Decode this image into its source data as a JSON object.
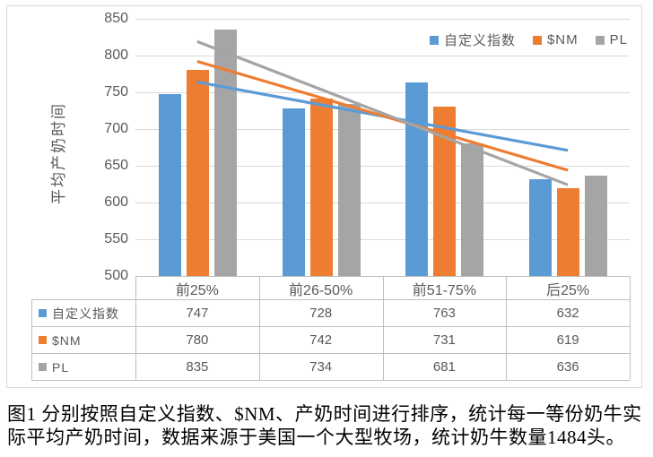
{
  "figure": {
    "caption_lines": [
      "图1 分别按照自定义指数、$NM、产奶时间进行排序，统计每一等份奶牛实",
      "际平均产奶时间，数据来源于美国一个大型牧场，统计奶牛数量1484头。"
    ]
  },
  "chart_data": {
    "type": "bar",
    "title": "",
    "xlabel": "",
    "ylabel": "平均产奶时间",
    "categories": [
      "前25%",
      "前26-50%",
      "前51-75%",
      "后25%"
    ],
    "series": [
      {
        "name": "自定义指数",
        "color": "#5B9BD5",
        "values": [
          747,
          728,
          763,
          632
        ]
      },
      {
        "name": "$NM",
        "color": "#ED7D31",
        "values": [
          780,
          742,
          731,
          619
        ]
      },
      {
        "name": "PL",
        "color": "#A5A5A5",
        "values": [
          835,
          734,
          681,
          636
        ]
      }
    ],
    "ylim": [
      500,
      850
    ],
    "ytick_step": 50,
    "grid": true,
    "legend_position": "top-right",
    "trendlines": "linear-per-series",
    "data_table_shown": true
  },
  "colors": {
    "gridline": "#D9D9D9",
    "axis_line": "#BFBFBF",
    "tick_text": "#595959",
    "table_border": "#BFBFBF",
    "frame_border": "#D9D9D9",
    "caption_text": "#000000"
  }
}
